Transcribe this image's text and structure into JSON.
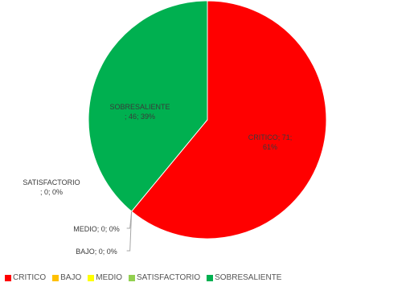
{
  "chart_data": {
    "type": "pie",
    "title": "",
    "categories": [
      "CRITICO",
      "BAJO",
      "MEDIO",
      "SATISFACTORIO",
      "SOBRESALIENTE"
    ],
    "values": [
      61,
      0,
      0,
      0,
      39
    ],
    "colors": [
      "#ff0000",
      "#ffc000",
      "#ffff00",
      "#92d050",
      "#00b050"
    ],
    "data_labels": [
      {
        "category": "CRITICO",
        "lines": [
          "CRITICO; 71;",
          "61%"
        ]
      },
      {
        "category": "BAJO",
        "lines": [
          "BAJO; 0; 0%"
        ]
      },
      {
        "category": "MEDIO",
        "lines": [
          "MEDIO; 0; 0%"
        ]
      },
      {
        "category": "SATISFACTORIO",
        "lines": [
          "SATISFACTORIO",
          "; 0; 0%"
        ]
      },
      {
        "category": "SOBRESALIENTE",
        "lines": [
          "SOBRESALIENTE",
          "; 46; 39%"
        ]
      }
    ],
    "legend": {
      "position": "bottom",
      "labels": [
        "CRITICO",
        "BAJO",
        "MEDIO",
        "SATISFACTORIO",
        "SOBRESALIENTE"
      ]
    }
  }
}
